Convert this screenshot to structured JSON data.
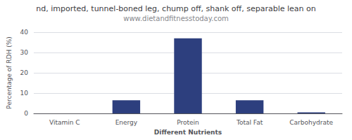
{
  "chart_data": {
    "type": "bar",
    "title": "nd, imported, tunnel-boned leg, chump off, shank off, separable lean on",
    "subtitle": "www.dietandfitnesstoday.com",
    "xlabel": "Different Nutrients",
    "ylabel": "Percentage of RDH (%)",
    "categories": [
      "Vitamin C",
      "Energy",
      "Protein",
      "Total Fat",
      "Carbohydrate"
    ],
    "values": [
      0.0,
      6.5,
      37.0,
      6.5,
      0.5
    ],
    "color": "#2D3F7E",
    "ylim": [
      0,
      40
    ],
    "yticks": [
      0,
      10,
      20,
      30,
      40
    ],
    "grid": true
  }
}
